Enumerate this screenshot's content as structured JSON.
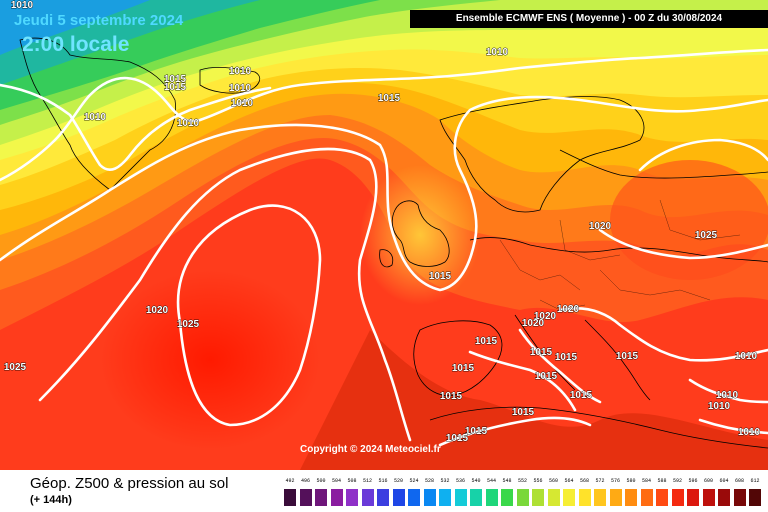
{
  "map": {
    "date": "Jeudi 5 septembre 2024",
    "time": "2:00 locale",
    "header": "Ensemble ECMWF ENS  ( Moyenne )  -  00 Z du 30/08/2024",
    "copyright": "Copyright © 2024 Meteociel.fr"
  },
  "footer": {
    "title": "Géop. Z500 & pression au sol",
    "lead": "(+ 144h)"
  },
  "legend": {
    "values": [
      "492",
      "496",
      "500",
      "504",
      "508",
      "512",
      "516",
      "520",
      "524",
      "528",
      "532",
      "536",
      "540",
      "544",
      "548",
      "552",
      "556",
      "560",
      "564",
      "568",
      "572",
      "576",
      "580",
      "584",
      "588",
      "592",
      "596",
      "600",
      "604",
      "608",
      "612"
    ],
    "colors": [
      "#3a0c3a",
      "#54105a",
      "#6e167a",
      "#8a1ca0",
      "#8f30c8",
      "#6a3ad8",
      "#3b3ee0",
      "#1e46e6",
      "#0f67ef",
      "#0a88f2",
      "#0fb0f0",
      "#14cbd8",
      "#17d2a8",
      "#1ed67a",
      "#3ad84a",
      "#7ad83a",
      "#aee034",
      "#d6e832",
      "#f6ee34",
      "#ffe22a",
      "#ffc61e",
      "#ffaa14",
      "#ff8c10",
      "#ff6c12",
      "#ff4a12",
      "#f42a10",
      "#dc180e",
      "#be100c",
      "#9a0a0a",
      "#780808",
      "#520606"
    ]
  }
}
